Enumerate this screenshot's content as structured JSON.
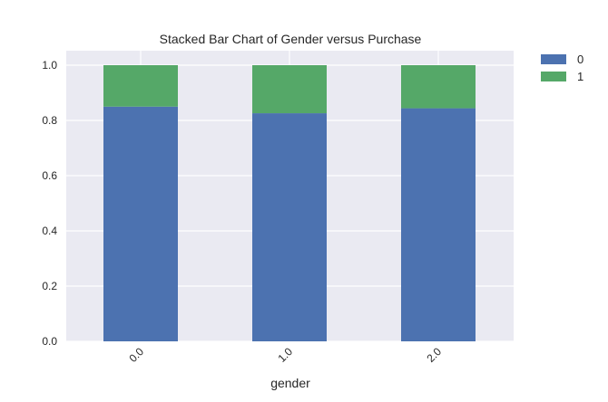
{
  "chart_data": {
    "type": "bar",
    "stacked": true,
    "title": "Stacked Bar Chart of Gender versus Purchase",
    "xlabel": "gender",
    "ylabel": "",
    "categories": [
      "0.0",
      "1.0",
      "2.0"
    ],
    "series": [
      {
        "name": "0",
        "color": "#4C72B0",
        "values": [
          0.85,
          0.826,
          0.844
        ]
      },
      {
        "name": "1",
        "color": "#55A868",
        "values": [
          0.15,
          0.174,
          0.156
        ]
      }
    ],
    "ylim": [
      0,
      1.0
    ],
    "yticks": [
      "0.0",
      "0.2",
      "0.4",
      "0.6",
      "0.8",
      "1.0"
    ],
    "grid": true,
    "legend_position": "outside-top-right",
    "plot_background": "#EAEAF2",
    "grid_color": "#ffffff",
    "text_color": "#262626"
  }
}
